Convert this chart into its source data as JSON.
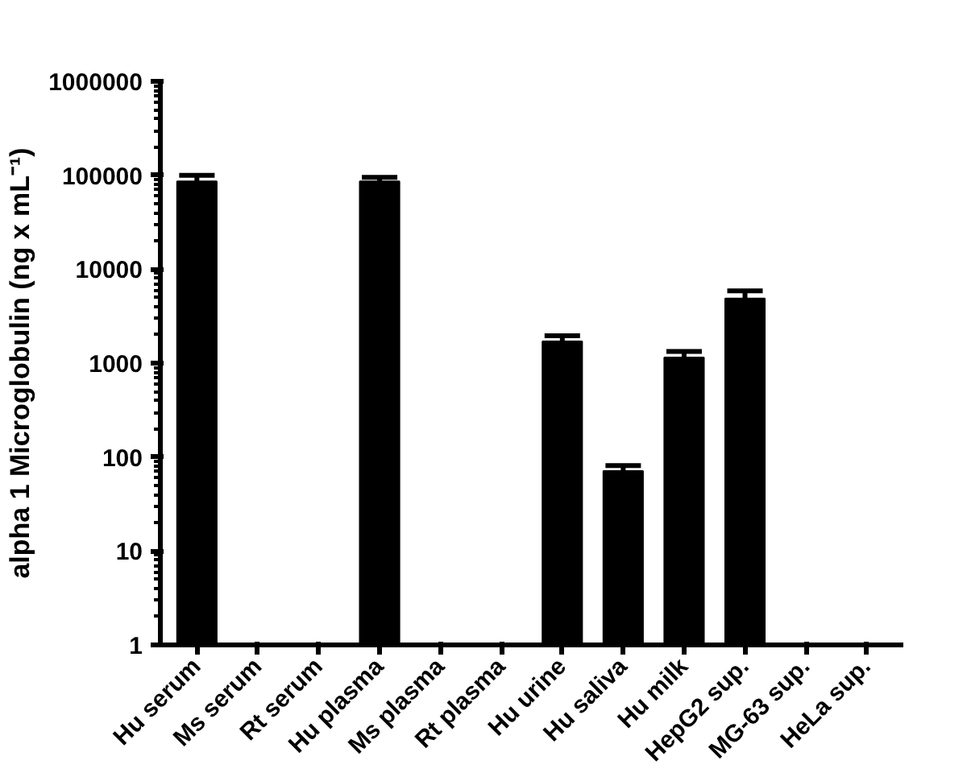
{
  "chart_data": {
    "type": "bar",
    "ylabel": "alpha 1 Microglobulin (ng x mL⁻¹)",
    "categories": [
      "Hu serum",
      "Ms serum",
      "Rt serum",
      "Hu plasma",
      "Ms plasma",
      "Rt plasma",
      "Hu urine",
      "Hu saliva",
      "Hu milk",
      "HepG2 sup.",
      "MG-63 sup.",
      "HeLa sup."
    ],
    "values": [
      86000,
      null,
      null,
      86000,
      null,
      null,
      1700,
      71,
      1150,
      4870,
      null,
      null
    ],
    "errors": [
      14000,
      null,
      null,
      9000,
      null,
      null,
      260,
      10,
      180,
      1000,
      null,
      null
    ],
    "color": "#000000",
    "log": "y",
    "ylim": [
      1,
      1000000
    ],
    "yticks": [
      1,
      10,
      100,
      1000,
      10000,
      100000,
      1000000
    ],
    "grid": false
  }
}
